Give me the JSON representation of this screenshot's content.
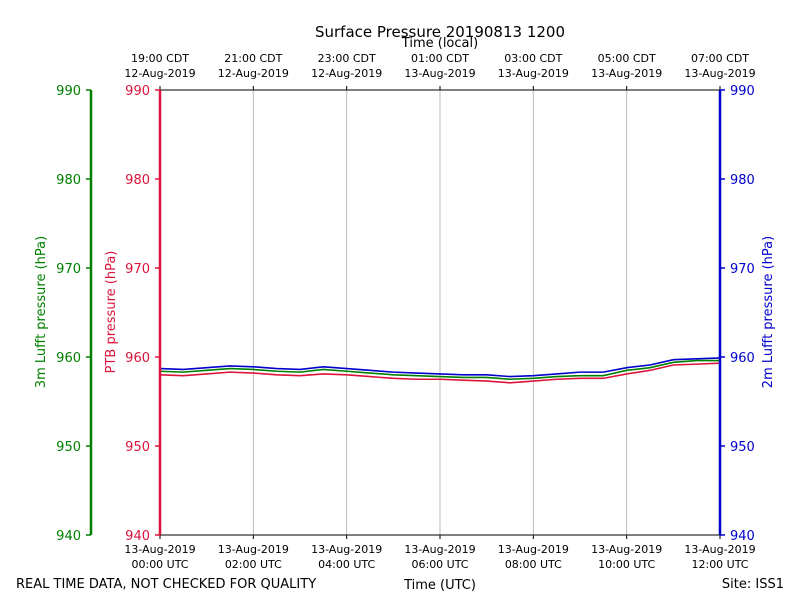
{
  "chart_data": {
    "type": "line",
    "title": "Surface Pressure 20190813 1200",
    "top_xlabel": "Time (local)",
    "xlabel": "Time (UTC)",
    "x_range_hours": [
      0,
      12
    ],
    "ylim": [
      940,
      990
    ],
    "yticks": [
      940,
      950,
      960,
      970,
      980,
      990
    ],
    "grid": "vertical",
    "bottom_ticks": [
      {
        "hour": 0,
        "date": "13-Aug-2019",
        "time": "00:00 UTC"
      },
      {
        "hour": 2,
        "date": "13-Aug-2019",
        "time": "02:00 UTC"
      },
      {
        "hour": 4,
        "date": "13-Aug-2019",
        "time": "04:00 UTC"
      },
      {
        "hour": 6,
        "date": "13-Aug-2019",
        "time": "06:00 UTC"
      },
      {
        "hour": 8,
        "date": "13-Aug-2019",
        "time": "08:00 UTC"
      },
      {
        "hour": 10,
        "date": "13-Aug-2019",
        "time": "10:00 UTC"
      },
      {
        "hour": 12,
        "date": "13-Aug-2019",
        "time": "12:00 UTC"
      }
    ],
    "top_ticks": [
      {
        "hour": 0,
        "time": "19:00 CDT",
        "date": "12-Aug-2019"
      },
      {
        "hour": 2,
        "time": "21:00 CDT",
        "date": "12-Aug-2019"
      },
      {
        "hour": 4,
        "time": "23:00 CDT",
        "date": "12-Aug-2019"
      },
      {
        "hour": 6,
        "time": "01:00 CDT",
        "date": "13-Aug-2019"
      },
      {
        "hour": 8,
        "time": "03:00 CDT",
        "date": "13-Aug-2019"
      },
      {
        "hour": 10,
        "time": "05:00 CDT",
        "date": "13-Aug-2019"
      },
      {
        "hour": 12,
        "time": "07:00 CDT",
        "date": "13-Aug-2019"
      }
    ],
    "axes": {
      "left_outer": {
        "label": "3m Lufft pressure (hPa)",
        "color": "#008000"
      },
      "left_inner": {
        "label": "PTB pressure (hPa)",
        "color": "#dc143c"
      },
      "right": {
        "label": "2m Lufft pressure (hPa)",
        "color": "#0000cd"
      }
    },
    "series": [
      {
        "color": "#008000",
        "x": [
          0,
          0.5,
          1,
          1.5,
          2,
          2.5,
          3,
          3.5,
          4,
          4.5,
          5,
          5.5,
          6,
          6.5,
          7,
          7.5,
          8,
          8.5,
          9,
          9.5,
          10,
          10.5,
          11,
          11.5,
          12
        ],
        "y": [
          958.4,
          958.3,
          958.5,
          958.7,
          958.6,
          958.4,
          958.3,
          958.6,
          958.4,
          958.2,
          958.0,
          957.9,
          957.8,
          957.7,
          957.7,
          957.5,
          957.6,
          957.8,
          957.9,
          957.9,
          958.5,
          958.8,
          959.4,
          959.6,
          959.6
        ]
      },
      {
        "color": "#dc143c",
        "x": [
          0,
          0.5,
          1,
          1.5,
          2,
          2.5,
          3,
          3.5,
          4,
          4.5,
          5,
          5.5,
          6,
          6.5,
          7,
          7.5,
          8,
          8.5,
          9,
          9.5,
          10,
          10.5,
          11,
          11.5,
          12
        ],
        "y": [
          958.0,
          957.9,
          958.1,
          958.3,
          958.2,
          958.0,
          957.9,
          958.1,
          958.0,
          957.8,
          957.6,
          957.5,
          957.5,
          957.4,
          957.3,
          957.1,
          957.3,
          957.5,
          957.6,
          957.6,
          958.1,
          958.5,
          959.1,
          959.2,
          959.3
        ]
      },
      {
        "color": "#0000cd",
        "x": [
          0,
          0.5,
          1,
          1.5,
          2,
          2.5,
          3,
          3.5,
          4,
          4.5,
          5,
          5.5,
          6,
          6.5,
          7,
          7.5,
          8,
          8.5,
          9,
          9.5,
          10,
          10.5,
          11,
          11.5,
          12
        ],
        "y": [
          958.7,
          958.6,
          958.8,
          959.0,
          958.9,
          958.7,
          958.6,
          958.9,
          958.7,
          958.5,
          958.3,
          958.2,
          958.1,
          958.0,
          958.0,
          957.8,
          957.9,
          958.1,
          958.3,
          958.3,
          958.8,
          959.1,
          959.7,
          959.8,
          959.9
        ]
      }
    ]
  },
  "footer": {
    "left": "REAL TIME DATA, NOT CHECKED FOR QUALITY",
    "right": "Site: ISS1"
  }
}
